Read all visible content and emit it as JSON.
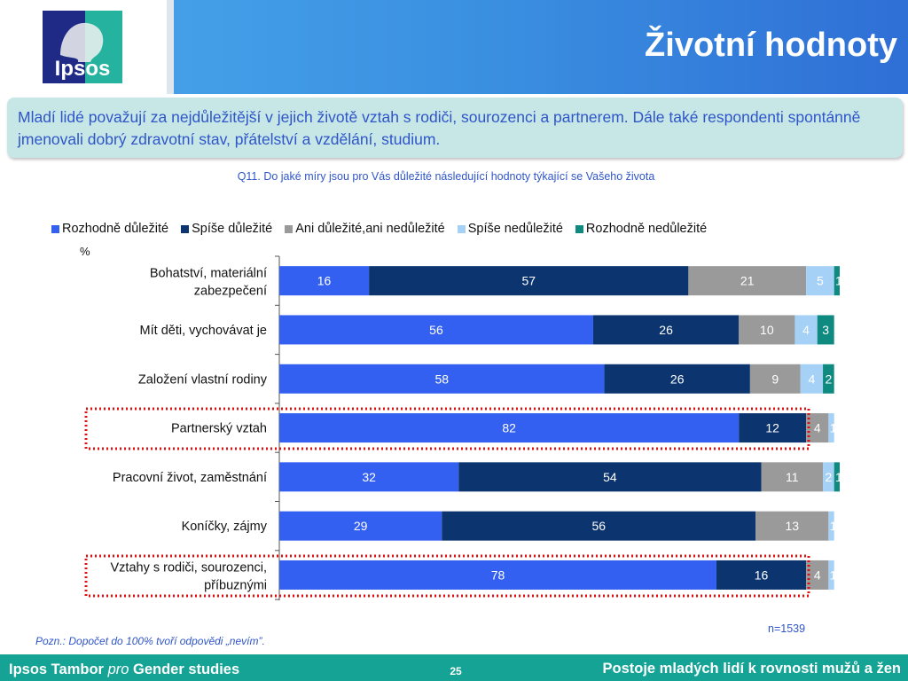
{
  "header": {
    "title": "Životní hodnoty",
    "logo_text": "Ipsos"
  },
  "callout": {
    "text": "Mladí lidé považují za nejdůležitější v jejich životě vztah s rodiči, sourozenci a partnerem. Dále také respondenti spontánně jmenovali dobrý zdravotní stav, přátelství a vzdělání, studium."
  },
  "chart_data": {
    "type": "bar",
    "orientation": "horizontal",
    "stacked": true,
    "title": "Q11. Do jaké míry jsou pro Vás důležité následující hodnoty týkající se Vašeho života",
    "unit": "%",
    "sample_size": "n=1539",
    "categories": [
      "Bohatství, materiální zabezpečení",
      "Mít děti, vychovávat je",
      "Založení vlastní rodiny",
      "Partnerský vztah",
      "Pracovní život, zaměstnání",
      "Koníčky, zájmy",
      "Vztahy s rodiči, sourozenci, příbuznými"
    ],
    "series": [
      {
        "name": "Rozhodně důležité",
        "color": "#3360f0",
        "label_color": "#ffffff",
        "values": [
          16,
          56,
          58,
          82,
          32,
          29,
          78
        ]
      },
      {
        "name": "Spíše důležité",
        "color": "#0c3570",
        "label_color": "#ffffff",
        "values": [
          57,
          26,
          26,
          12,
          54,
          56,
          16
        ]
      },
      {
        "name": "Ani důležité,ani nedůležité",
        "color": "#9a9a9a",
        "label_color": "#ffffff",
        "values": [
          21,
          10,
          9,
          4,
          11,
          13,
          4
        ]
      },
      {
        "name": "Spíše nedůležité",
        "color": "#a6d1f7",
        "label_color": "#ffffff",
        "values": [
          5,
          4,
          4,
          1,
          2,
          1,
          1
        ]
      },
      {
        "name": "Rozhodně nedůležité",
        "color": "#0f8a80",
        "label_color": "#ffffff",
        "values": [
          1,
          3,
          2,
          0,
          1,
          0,
          0
        ]
      }
    ],
    "data_labels": [
      [
        "16",
        "57",
        "21",
        "5",
        "1"
      ],
      [
        "56",
        "26",
        "10",
        "4",
        "3"
      ],
      [
        "58",
        "26",
        "9",
        "4",
        "2"
      ],
      [
        "82",
        "12",
        "4",
        "1",
        "0"
      ],
      [
        "32",
        "54",
        "11",
        "2",
        "1"
      ],
      [
        "29",
        "56",
        "13",
        "1",
        "0"
      ],
      [
        "78",
        "16",
        "4",
        "1",
        "0"
      ]
    ],
    "xlim": [
      0,
      100
    ],
    "legend_position": "top",
    "highlighted_categories": [
      "Partnerský vztah",
      "Vztahy s rodiči, sourozenci, příbuznými"
    ],
    "highlight_color": "#e01010"
  },
  "note": "Pozn.: Dopočet do 100% tvoří odpovědi „nevím”.",
  "footer": {
    "left_main": "Ipsos Tambor",
    "left_italic": "pro",
    "left_tail": "Gender studies",
    "page_number": "25",
    "right": "Postoje mladých lidí k rovnosti mužů a žen"
  }
}
